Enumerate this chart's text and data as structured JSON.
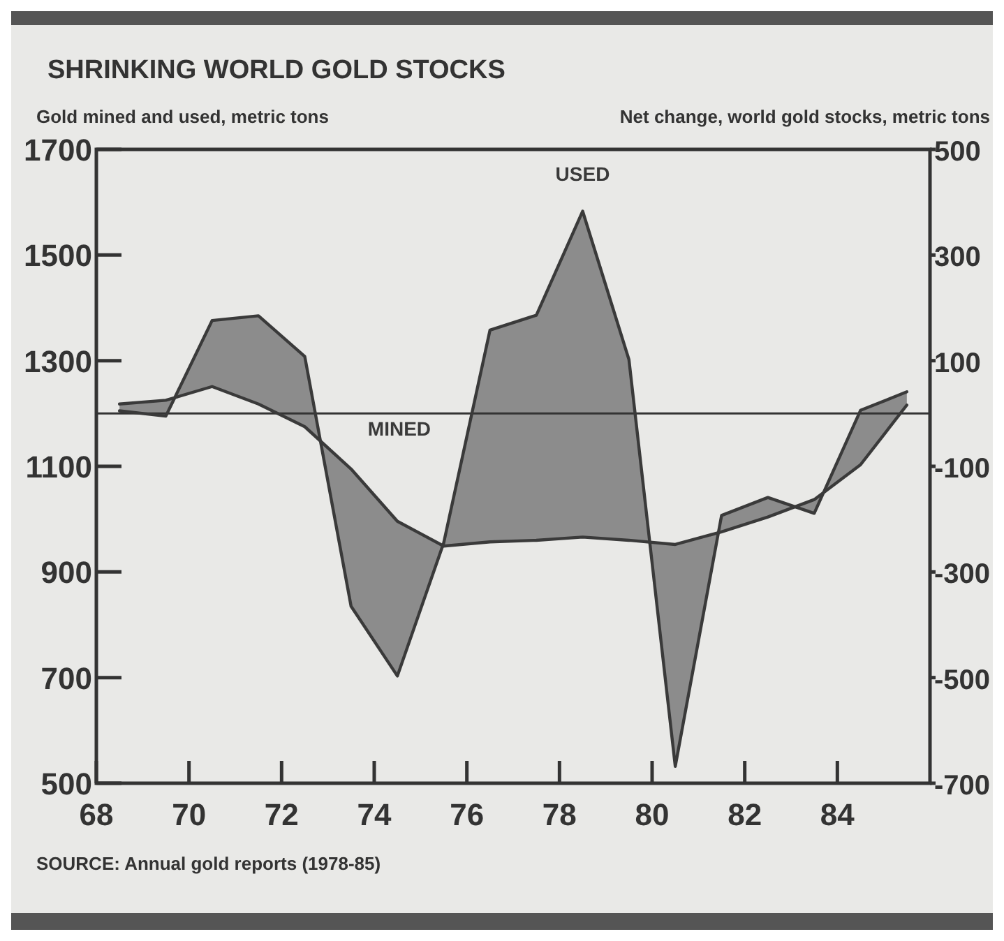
{
  "chart_data": {
    "type": "line",
    "title": "SHRINKING WORLD GOLD STOCKS",
    "ylabel": "Gold mined and used, metric tons",
    "y2label": "Net change, world gold stocks, metric tons",
    "x": [
      68.5,
      69.5,
      70.5,
      71.5,
      72.5,
      73.5,
      74.5,
      75.5,
      76.5,
      77.5,
      78.5,
      79.5,
      80.5,
      81.5,
      82.5,
      83.5,
      84.5,
      85.5
    ],
    "series": [
      {
        "name": "USED",
        "color": "#3a3a3a",
        "values": [
          1205,
          1195,
          1376,
          1385,
          1308,
          835,
          703,
          955,
          1358,
          1386,
          1583,
          1302,
          532,
          1007,
          1041,
          1011,
          1206,
          1241
        ]
      },
      {
        "name": "MINED",
        "color": "#3a3a3a",
        "values": [
          1218,
          1225,
          1251,
          1218,
          1175,
          1095,
          996,
          949,
          957,
          960,
          966,
          960,
          952,
          976,
          1004,
          1037,
          1103,
          1216
        ]
      }
    ],
    "xlim": [
      68,
      86
    ],
    "xticks": [
      68,
      70,
      72,
      74,
      76,
      78,
      80,
      82,
      84
    ],
    "ylim": [
      500,
      1700
    ],
    "yticks": [
      500,
      700,
      900,
      1100,
      1300,
      1500,
      1700
    ],
    "y2lim": [
      -700,
      500
    ],
    "y2ticks": [
      -700,
      -500,
      -300,
      -100,
      100,
      300,
      500
    ],
    "ref_lines": [
      {
        "axis": "y2",
        "value": 0,
        "label": null
      }
    ],
    "annotations": [
      "SOURCE: Annual gold reports (1978-85)"
    ]
  }
}
